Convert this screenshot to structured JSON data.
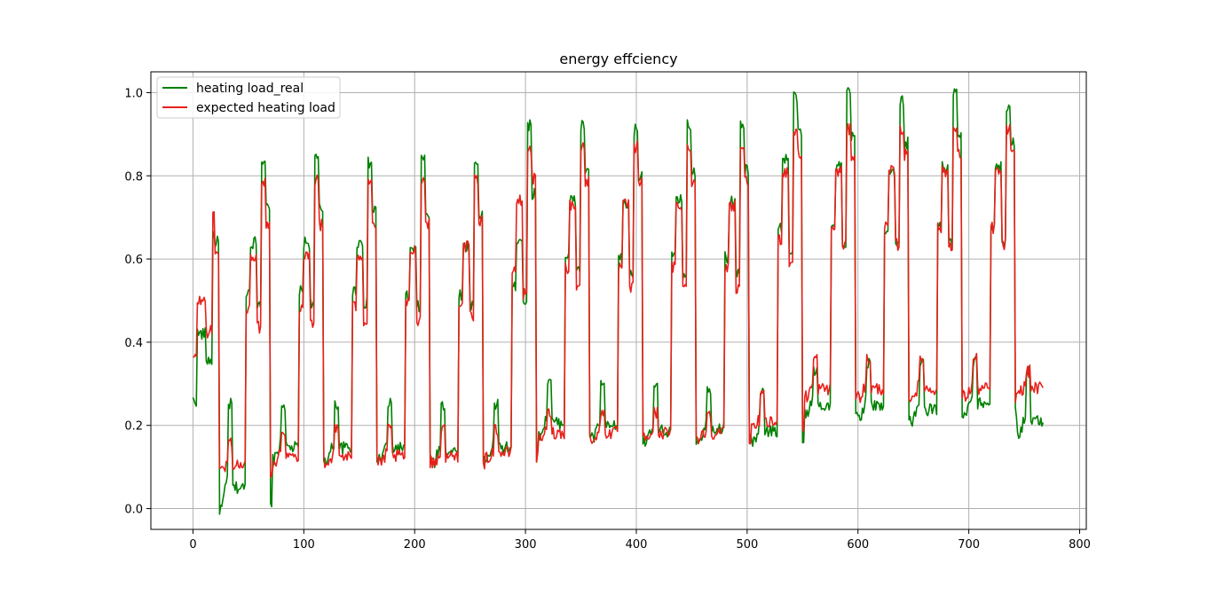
{
  "chart_data": {
    "type": "line",
    "title": "energy effciency",
    "xlabel": "",
    "ylabel": "",
    "xlim": [
      -38,
      806
    ],
    "ylim": [
      -0.05,
      1.05
    ],
    "xticks": [
      0,
      100,
      200,
      300,
      400,
      500,
      600,
      700,
      800
    ],
    "yticks": [
      0.0,
      0.2,
      0.4,
      0.6,
      0.8,
      1.0
    ],
    "xtick_labels": [
      "0",
      "100",
      "200",
      "300",
      "400",
      "500",
      "600",
      "700",
      "800"
    ],
    "ytick_labels": [
      "0.0",
      "0.2",
      "0.4",
      "0.6",
      "0.8",
      "1.0"
    ],
    "grid": true,
    "legend_position": "top-left",
    "n_points": 768,
    "cycle_length": 48,
    "series": [
      {
        "name": "heating load_real",
        "color": "#008000",
        "profiles": [
          {
            "x_start": 0,
            "low": 0.26,
            "high": 0.64,
            "peak": 0.66,
            "morning": 0.42
          },
          {
            "x_start": 24,
            "low": 0.0,
            "high": 0.64,
            "peak": 0.84,
            "morning": 0.25
          },
          {
            "x_start": 72,
            "low": 0.12,
            "high": 0.64,
            "peak": 0.84,
            "morning": 0.25
          },
          {
            "x_start": 120,
            "low": 0.12,
            "high": 0.64,
            "peak": 0.83,
            "morning": 0.25
          },
          {
            "x_start": 168,
            "low": 0.12,
            "high": 0.62,
            "peak": 0.84,
            "morning": 0.25
          },
          {
            "x_start": 216,
            "low": 0.11,
            "high": 0.63,
            "peak": 0.83,
            "morning": 0.25
          },
          {
            "x_start": 264,
            "low": 0.12,
            "high": 0.65,
            "peak": 0.92,
            "morning": 0.25
          },
          {
            "x_start": 312,
            "low": 0.18,
            "high": 0.74,
            "peak": 0.92,
            "morning": 0.31
          },
          {
            "x_start": 360,
            "low": 0.17,
            "high": 0.73,
            "peak": 0.91,
            "morning": 0.3
          },
          {
            "x_start": 408,
            "low": 0.16,
            "high": 0.74,
            "peak": 0.92,
            "morning": 0.29
          },
          {
            "x_start": 456,
            "low": 0.17,
            "high": 0.74,
            "peak": 0.92,
            "morning": 0.29
          },
          {
            "x_start": 504,
            "low": 0.16,
            "high": 0.84,
            "peak": 0.99,
            "morning": 0.29
          },
          {
            "x_start": 552,
            "low": 0.23,
            "high": 0.82,
            "peak": 1.0,
            "morning": 0.33
          },
          {
            "x_start": 600,
            "low": 0.22,
            "high": 0.81,
            "peak": 0.98,
            "morning": 0.35
          },
          {
            "x_start": 648,
            "low": 0.21,
            "high": 0.82,
            "peak": 1.0,
            "morning": 0.35
          },
          {
            "x_start": 696,
            "low": 0.23,
            "high": 0.82,
            "peak": 0.97,
            "morning": 0.35
          },
          {
            "x_start": 744,
            "low": 0.18,
            "high": 0.33,
            "peak": 0.33,
            "morning": 0.33
          }
        ]
      },
      {
        "name": "expected heating load",
        "color": "#e8201b",
        "profiles": [
          {
            "x_start": 0,
            "low": 0.36,
            "high": 0.62,
            "peak": 0.71,
            "morning": 0.5
          },
          {
            "x_start": 24,
            "low": 0.09,
            "high": 0.61,
            "peak": 0.79,
            "morning": 0.16
          },
          {
            "x_start": 72,
            "low": 0.11,
            "high": 0.61,
            "peak": 0.79,
            "morning": 0.19
          },
          {
            "x_start": 120,
            "low": 0.11,
            "high": 0.61,
            "peak": 0.79,
            "morning": 0.19
          },
          {
            "x_start": 168,
            "low": 0.11,
            "high": 0.62,
            "peak": 0.79,
            "morning": 0.19
          },
          {
            "x_start": 216,
            "low": 0.11,
            "high": 0.63,
            "peak": 0.79,
            "morning": 0.19
          },
          {
            "x_start": 264,
            "low": 0.12,
            "high": 0.74,
            "peak": 0.87,
            "morning": 0.19
          },
          {
            "x_start": 312,
            "low": 0.17,
            "high": 0.73,
            "peak": 0.87,
            "morning": 0.23
          },
          {
            "x_start": 360,
            "low": 0.17,
            "high": 0.73,
            "peak": 0.87,
            "morning": 0.23
          },
          {
            "x_start": 408,
            "low": 0.17,
            "high": 0.73,
            "peak": 0.87,
            "morning": 0.23
          },
          {
            "x_start": 456,
            "low": 0.17,
            "high": 0.73,
            "peak": 0.87,
            "morning": 0.23
          },
          {
            "x_start": 504,
            "low": 0.19,
            "high": 0.81,
            "peak": 0.91,
            "morning": 0.27
          },
          {
            "x_start": 552,
            "low": 0.27,
            "high": 0.81,
            "peak": 0.91,
            "morning": 0.36
          },
          {
            "x_start": 600,
            "low": 0.27,
            "high": 0.81,
            "peak": 0.91,
            "morning": 0.36
          },
          {
            "x_start": 648,
            "low": 0.27,
            "high": 0.81,
            "peak": 0.91,
            "morning": 0.36
          },
          {
            "x_start": 696,
            "low": 0.27,
            "high": 0.81,
            "peak": 0.91,
            "morning": 0.36
          },
          {
            "x_start": 744,
            "low": 0.28,
            "high": 0.37,
            "peak": 0.37,
            "morning": 0.33
          }
        ]
      }
    ]
  }
}
